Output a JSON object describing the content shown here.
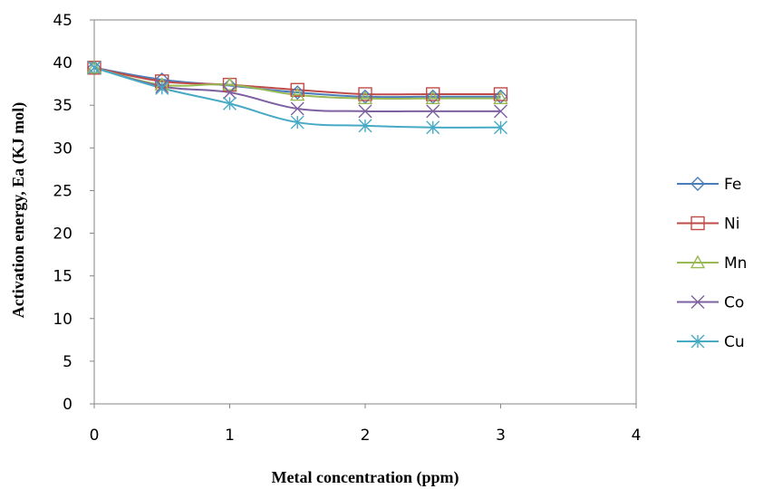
{
  "chart_data": {
    "type": "line",
    "title": "",
    "xlabel": "Metal concentration (ppm)",
    "ylabel": "Activation energy, Ea (KJ mol)",
    "xlim": [
      0,
      4
    ],
    "ylim": [
      0,
      45
    ],
    "x_ticks": [
      "0",
      "1",
      "2",
      "3",
      "4"
    ],
    "y_ticks": [
      "0",
      "5",
      "10",
      "15",
      "20",
      "25",
      "30",
      "35",
      "40",
      "45"
    ],
    "grid": false,
    "legend_position": "right",
    "x": [
      0,
      0.5,
      1,
      1.5,
      2,
      2.5,
      3
    ],
    "series": [
      {
        "name": "Fe",
        "color": "#4a7ebb",
        "marker": "diamond",
        "values": [
          39.4,
          38.0,
          37.3,
          36.5,
          36.0,
          36.0,
          36.0
        ]
      },
      {
        "name": "Ni",
        "color": "#be4b48",
        "marker": "square",
        "values": [
          39.4,
          37.8,
          37.4,
          36.8,
          36.3,
          36.3,
          36.3
        ]
      },
      {
        "name": "Mn",
        "color": "#98b954",
        "marker": "triangle",
        "values": [
          39.4,
          37.4,
          37.4,
          36.2,
          35.8,
          35.8,
          35.8
        ]
      },
      {
        "name": "Co",
        "color": "#7d60a0",
        "marker": "x",
        "values": [
          39.4,
          37.2,
          36.5,
          34.6,
          34.3,
          34.3,
          34.3
        ]
      },
      {
        "name": "Cu",
        "color": "#46aac5",
        "marker": "star",
        "values": [
          39.4,
          37.0,
          35.2,
          33.0,
          32.6,
          32.4,
          32.4
        ]
      }
    ]
  }
}
